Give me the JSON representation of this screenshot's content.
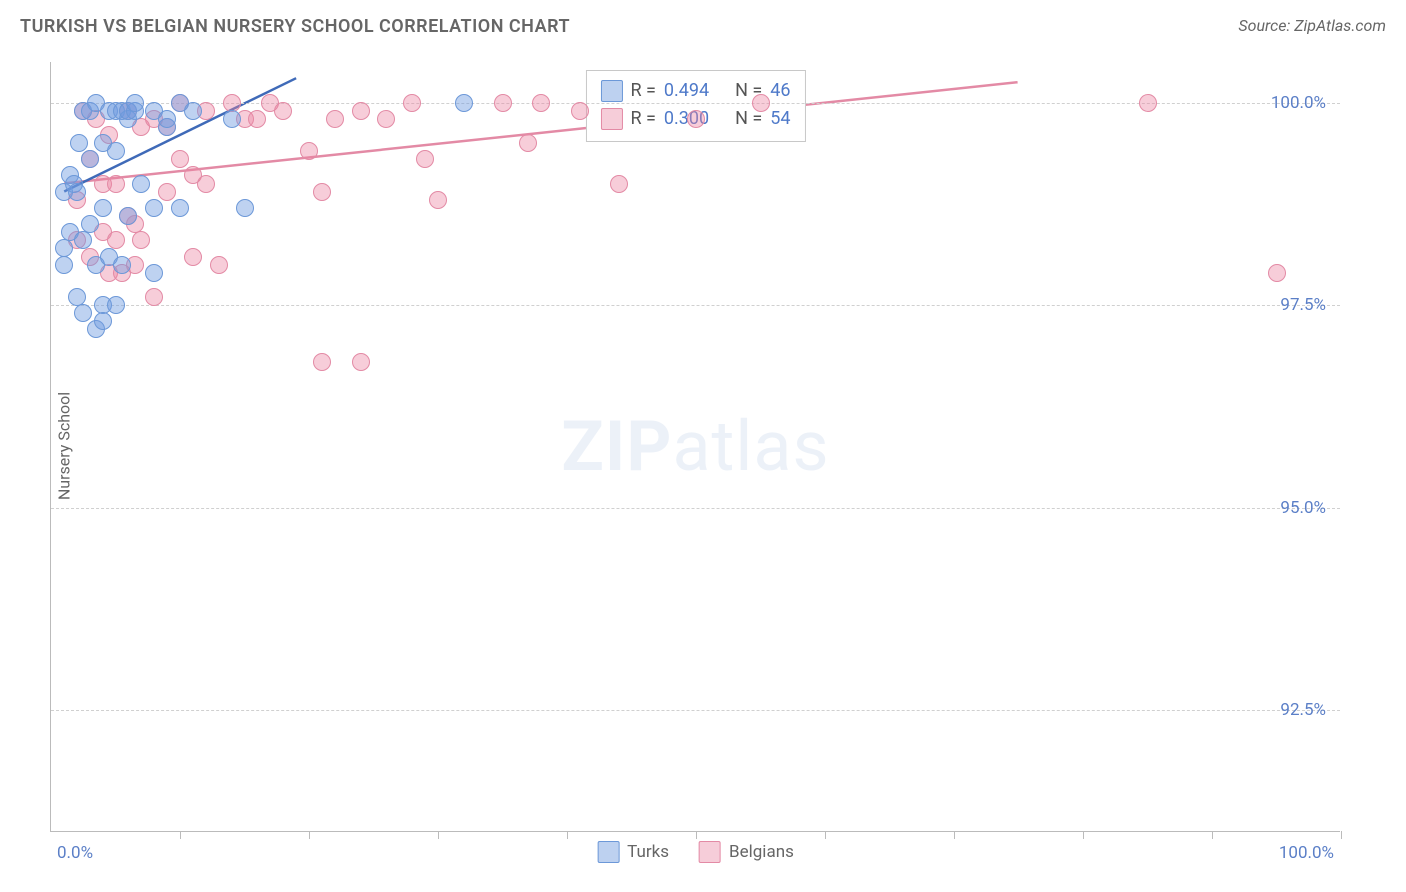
{
  "title": "TURKISH VS BELGIAN NURSERY SCHOOL CORRELATION CHART",
  "source": "Source: ZipAtlas.com",
  "y_axis_label": "Nursery School",
  "watermark_bold": "ZIP",
  "watermark_rest": "atlas",
  "chart": {
    "type": "scatter",
    "background_color": "#ffffff",
    "grid_color": "#d0d0d0",
    "axis_color": "#bbbbbb",
    "marker_radius": 9,
    "marker_opacity": 0.55,
    "trend_line_width": 2.5,
    "xlim": [
      0,
      100
    ],
    "ylim": [
      91,
      100.5
    ],
    "x_ticks": [
      10,
      20,
      30,
      40,
      50,
      60,
      70,
      80,
      90,
      100
    ],
    "x_tick_left_label": "0.0%",
    "x_tick_right_label": "100.0%",
    "y_gridlines": [
      92.5,
      95.0,
      97.5,
      100.0
    ],
    "y_tick_labels": [
      "92.5%",
      "95.0%",
      "97.5%",
      "100.0%"
    ],
    "label_color": "#5b7fc7",
    "label_fontsize": 17
  },
  "series": {
    "turks": {
      "label": "Turks",
      "color_fill": "rgba(110,155,225,0.45)",
      "color_stroke": "#6c98d8",
      "swatch_fill": "#bdd1f0",
      "swatch_border": "#6c98d8",
      "R": "0.494",
      "N": "46",
      "trend": {
        "x1": 1,
        "y1": 98.9,
        "x2": 19,
        "y2": 100.3
      },
      "points": [
        [
          1,
          98.0
        ],
        [
          1,
          98.2
        ],
        [
          1,
          98.9
        ],
        [
          1.5,
          99.1
        ],
        [
          1.5,
          98.4
        ],
        [
          1.8,
          99.0
        ],
        [
          2,
          97.6
        ],
        [
          2,
          98.9
        ],
        [
          2.2,
          99.5
        ],
        [
          2.5,
          99.9
        ],
        [
          2.5,
          98.3
        ],
        [
          2.5,
          97.4
        ],
        [
          3,
          98.5
        ],
        [
          3,
          99.3
        ],
        [
          3,
          99.9
        ],
        [
          3.5,
          100.0
        ],
        [
          3.5,
          98.0
        ],
        [
          3.5,
          97.2
        ],
        [
          4,
          98.7
        ],
        [
          4,
          99.5
        ],
        [
          4,
          97.5
        ],
        [
          4,
          97.3
        ],
        [
          4.5,
          99.9
        ],
        [
          4.5,
          98.1
        ],
        [
          5,
          99.9
        ],
        [
          5,
          99.4
        ],
        [
          5,
          97.5
        ],
        [
          5.5,
          99.9
        ],
        [
          5.5,
          98.0
        ],
        [
          6,
          99.8
        ],
        [
          6,
          99.9
        ],
        [
          6,
          98.6
        ],
        [
          6.5,
          99.9
        ],
        [
          6.5,
          100.0
        ],
        [
          7,
          99.0
        ],
        [
          8,
          99.9
        ],
        [
          8,
          98.7
        ],
        [
          8,
          97.9
        ],
        [
          9,
          99.7
        ],
        [
          9,
          99.8
        ],
        [
          10,
          98.7
        ],
        [
          10,
          100.0
        ],
        [
          11,
          99.9
        ],
        [
          14,
          99.8
        ],
        [
          15,
          98.7
        ],
        [
          32,
          100.0
        ]
      ]
    },
    "belgians": {
      "label": "Belgians",
      "color_fill": "rgba(235,130,160,0.40)",
      "color_stroke": "#e38aa5",
      "swatch_fill": "#f6cdd9",
      "swatch_border": "#e38aa5",
      "R": "0.300",
      "N": "54",
      "trend": {
        "x1": 1,
        "y1": 99.0,
        "x2": 75,
        "y2": 100.25
      },
      "points": [
        [
          2,
          98.3
        ],
        [
          2,
          98.8
        ],
        [
          2.5,
          99.9
        ],
        [
          3,
          98.1
        ],
        [
          3,
          99.3
        ],
        [
          3.5,
          99.8
        ],
        [
          4,
          98.4
        ],
        [
          4,
          99.0
        ],
        [
          4.5,
          97.9
        ],
        [
          4.5,
          99.6
        ],
        [
          5,
          98.3
        ],
        [
          5,
          99.0
        ],
        [
          5.5,
          97.9
        ],
        [
          6,
          98.6
        ],
        [
          6,
          99.9
        ],
        [
          6.5,
          98.0
        ],
        [
          6.5,
          98.5
        ],
        [
          7,
          99.7
        ],
        [
          7,
          98.3
        ],
        [
          8,
          97.6
        ],
        [
          8,
          99.8
        ],
        [
          9,
          98.9
        ],
        [
          9,
          99.7
        ],
        [
          10,
          100.0
        ],
        [
          10,
          99.3
        ],
        [
          11,
          99.1
        ],
        [
          11,
          98.1
        ],
        [
          12,
          99.9
        ],
        [
          12,
          99.0
        ],
        [
          13,
          98.0
        ],
        [
          14,
          100.0
        ],
        [
          15,
          99.8
        ],
        [
          16,
          99.8
        ],
        [
          17,
          100.0
        ],
        [
          18,
          99.9
        ],
        [
          20,
          99.4
        ],
        [
          21,
          98.9
        ],
        [
          21,
          96.8
        ],
        [
          22,
          99.8
        ],
        [
          24,
          96.8
        ],
        [
          24,
          99.9
        ],
        [
          26,
          99.8
        ],
        [
          28,
          100.0
        ],
        [
          29,
          99.3
        ],
        [
          30,
          98.8
        ],
        [
          35,
          100.0
        ],
        [
          37,
          99.5
        ],
        [
          38,
          100.0
        ],
        [
          41,
          99.9
        ],
        [
          44,
          99.0
        ],
        [
          50,
          99.8
        ],
        [
          55,
          100.0
        ],
        [
          85,
          100.0
        ],
        [
          95,
          97.9
        ]
      ]
    }
  },
  "stats_labels": {
    "R": "R =",
    "N": "N ="
  },
  "legend_bottom": [
    "Turks",
    "Belgians"
  ]
}
